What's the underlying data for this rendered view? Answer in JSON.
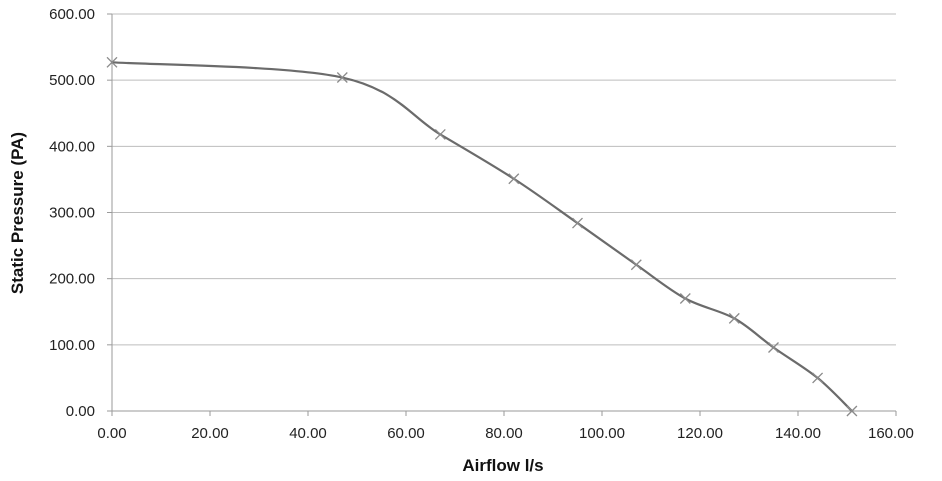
{
  "chart_data": {
    "type": "line",
    "title": "",
    "xlabel": "Airflow l/s",
    "ylabel": "Static Pressure (PA)",
    "xlim": [
      0,
      160
    ],
    "ylim": [
      0,
      600
    ],
    "x_ticks": [
      "0.00",
      "20.00",
      "40.00",
      "60.00",
      "80.00",
      "100.00",
      "120.00",
      "140.00",
      "160.00"
    ],
    "y_ticks": [
      "0.00",
      "100.00",
      "200.00",
      "300.00",
      "400.00",
      "500.00",
      "600.00"
    ],
    "grid": true,
    "legend": "none",
    "line_color": "#6b6b6b",
    "series": [
      {
        "x": [
          0,
          47,
          67,
          82,
          95,
          107,
          117,
          127,
          135,
          144,
          151
        ],
        "y": [
          527,
          504,
          418,
          351,
          284,
          221,
          170,
          140,
          96,
          50,
          0
        ]
      }
    ]
  }
}
